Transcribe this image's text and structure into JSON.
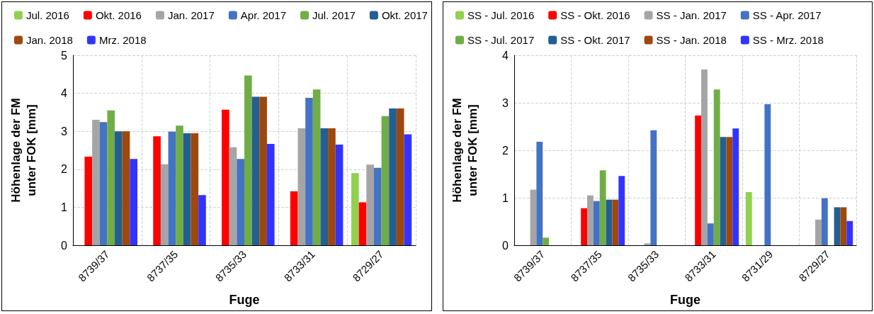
{
  "chart_data": [
    {
      "type": "bar",
      "xlabel": "Fuge",
      "ylabel": "Höhenlage der FM\nunter FOK [mm]",
      "categories": [
        "8739/37",
        "8737/35",
        "8735/33",
        "8733/31",
        "8729/27"
      ],
      "ylim": [
        0,
        5
      ],
      "yticks": [
        0,
        1,
        2,
        3,
        4,
        5
      ],
      "grid": true,
      "legend": "top",
      "series": [
        {
          "name": "Jul. 2016",
          "color": "#92d050",
          "values": [
            null,
            null,
            null,
            null,
            1.9
          ]
        },
        {
          "name": "Okt. 2016",
          "color": "#ff0000",
          "values": [
            2.33,
            2.87,
            3.57,
            1.42,
            1.13
          ]
        },
        {
          "name": "Jan. 2017",
          "color": "#a5a5a5",
          "values": [
            3.3,
            2.13,
            2.58,
            3.08,
            2.12
          ]
        },
        {
          "name": "Apr. 2017",
          "color": "#4472c4",
          "values": [
            3.24,
            2.99,
            2.27,
            3.88,
            2.04
          ]
        },
        {
          "name": "Jul. 2017",
          "color": "#70ad47",
          "values": [
            3.55,
            3.15,
            4.47,
            4.1,
            3.4
          ]
        },
        {
          "name": "Okt. 2017",
          "color": "#255e91",
          "values": [
            3.0,
            2.95,
            3.91,
            3.08,
            3.6
          ]
        },
        {
          "name": "Jan. 2018",
          "color": "#9e480e",
          "values": [
            3.0,
            2.95,
            3.91,
            3.08,
            3.6
          ]
        },
        {
          "name": "Mrz. 2018",
          "color": "#3333ff",
          "values": [
            2.27,
            1.32,
            2.67,
            2.65,
            2.92
          ]
        }
      ]
    },
    {
      "type": "bar",
      "xlabel": "Fuge",
      "ylabel": "Höhenlage der FM\nunter FOK [mm]",
      "categories": [
        "8739/37",
        "8737/35",
        "8735/33",
        "8733/31",
        "8731/29",
        "8729/27"
      ],
      "ylim": [
        0,
        4
      ],
      "yticks": [
        0,
        1,
        2,
        3,
        4
      ],
      "grid": true,
      "legend": "top",
      "series": [
        {
          "name": "SS - Jul. 2016",
          "color": "#92d050",
          "values": [
            null,
            null,
            null,
            null,
            1.12,
            0
          ]
        },
        {
          "name": "SS - Okt. 2016",
          "color": "#ff0000",
          "values": [
            0,
            0.78,
            0,
            2.73,
            0,
            0
          ]
        },
        {
          "name": "SS - Jan. 2017",
          "color": "#a5a5a5",
          "values": [
            1.17,
            1.05,
            0.04,
            3.7,
            null,
            0.54
          ]
        },
        {
          "name": "SS - Apr. 2017",
          "color": "#4472c4",
          "values": [
            2.18,
            0.93,
            2.42,
            0.46,
            2.97,
            0.99
          ]
        },
        {
          "name": "SS - Jul. 2017",
          "color": "#70ad47",
          "values": [
            0.16,
            1.58,
            null,
            3.28,
            null,
            null
          ]
        },
        {
          "name": "SS - Okt. 2017",
          "color": "#255e91",
          "values": [
            null,
            0.96,
            null,
            2.28,
            null,
            0.8
          ]
        },
        {
          "name": "SS - Jan. 2018",
          "color": "#9e480e",
          "values": [
            null,
            0.96,
            null,
            2.28,
            null,
            0.8
          ]
        },
        {
          "name": "SS - Mrz. 2018",
          "color": "#3333ff",
          "values": [
            null,
            1.46,
            null,
            2.46,
            null,
            0.51
          ]
        }
      ]
    }
  ]
}
